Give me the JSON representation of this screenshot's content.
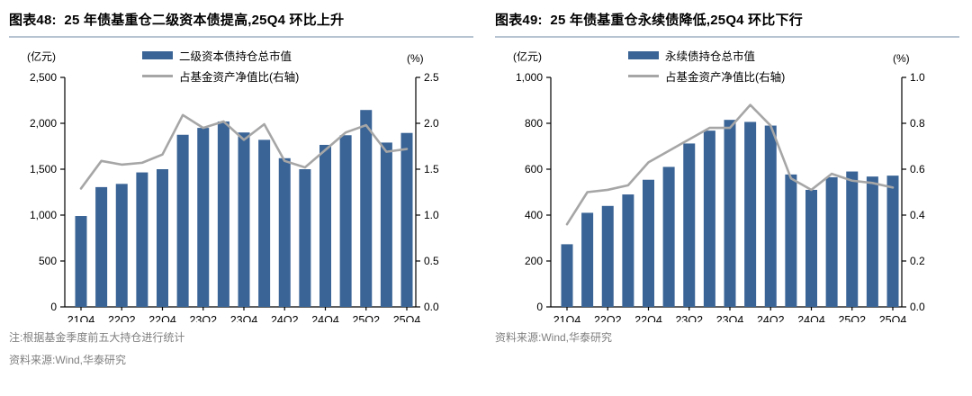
{
  "colors": {
    "bar": "#3a6496",
    "line": "#a6a6a6",
    "axis": "#000000",
    "title_underline": "#b6c3d1",
    "footer_text": "#7f7f7f"
  },
  "chart_data": [
    {
      "type": "bar+line",
      "title": "图表48:  25 年债基重仓二级资本债提高,25Q4 环比上升",
      "categories": [
        "21Q4",
        "22Q1",
        "22Q2",
        "22Q3",
        "22Q4",
        "23Q1",
        "23Q2",
        "23Q3",
        "23Q4",
        "24Q1",
        "24Q2",
        "24Q3",
        "24Q4",
        "25Q1",
        "25Q2",
        "25Q3",
        "25Q4"
      ],
      "x_tick_every": 2,
      "series": [
        {
          "name": "二级资本债持仓总市值",
          "type": "bar",
          "axis": "left",
          "values": [
            990,
            1305,
            1340,
            1465,
            1500,
            1875,
            1950,
            2020,
            1900,
            1820,
            1620,
            1500,
            1765,
            1870,
            2145,
            1790,
            1895
          ]
        },
        {
          "name": "占基金资产净值比(右轴)",
          "type": "line",
          "axis": "right",
          "values": [
            1.29,
            1.59,
            1.55,
            1.57,
            1.66,
            2.09,
            1.95,
            2.02,
            1.82,
            1.99,
            1.59,
            1.52,
            1.71,
            1.9,
            1.98,
            1.69,
            1.72
          ]
        }
      ],
      "left_axis": {
        "label": "(亿元)",
        "min": 0,
        "max": 2500,
        "step": 500,
        "decimals": 0
      },
      "right_axis": {
        "label": "(%)",
        "min": 0,
        "max": 2.5,
        "step": 0.5,
        "decimals": 1
      },
      "legend_position": "top-center",
      "grid": false,
      "notes": [
        "注:根据基金季度前五大持仓进行统计",
        "资料来源:Wind,华泰研究"
      ]
    },
    {
      "type": "bar+line",
      "title": "图表49:  25 年债基重仓永续债降低,25Q4 环比下行",
      "categories": [
        "21Q4",
        "22Q1",
        "22Q2",
        "22Q3",
        "22Q4",
        "23Q1",
        "23Q2",
        "23Q3",
        "23Q4",
        "24Q1",
        "24Q2",
        "24Q3",
        "24Q4",
        "25Q1",
        "25Q2",
        "25Q3",
        "25Q4"
      ],
      "x_tick_every": 2,
      "series": [
        {
          "name": "永续债持仓总市值",
          "type": "bar",
          "axis": "left",
          "values": [
            273,
            410,
            440,
            490,
            554,
            610,
            712,
            768,
            815,
            806,
            790,
            577,
            510,
            565,
            590,
            568,
            572
          ]
        },
        {
          "name": "占基金资产净值比(右轴)",
          "type": "line",
          "axis": "right",
          "values": [
            0.36,
            0.5,
            0.51,
            0.53,
            0.63,
            0.68,
            0.73,
            0.78,
            0.78,
            0.88,
            0.79,
            0.56,
            0.51,
            0.58,
            0.55,
            0.54,
            0.52
          ]
        }
      ],
      "left_axis": {
        "label": "(亿元)",
        "min": 0,
        "max": 1000,
        "step": 200,
        "decimals": 0
      },
      "right_axis": {
        "label": "(%)",
        "min": 0,
        "max": 1.0,
        "step": 0.2,
        "decimals": 1
      },
      "legend_position": "top-center",
      "grid": false,
      "notes": [
        "资料来源:Wind,华泰研究"
      ]
    }
  ]
}
